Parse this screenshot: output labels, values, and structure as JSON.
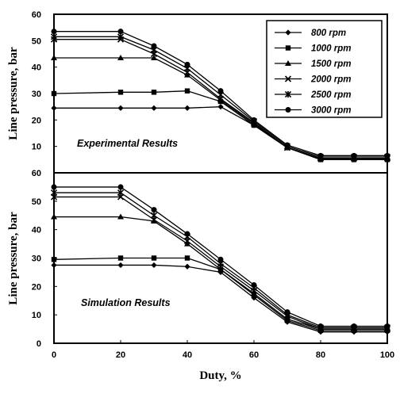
{
  "chart_data": [
    {
      "type": "line",
      "annotation": "Experimental Results",
      "xlabel": "Duty, %",
      "ylabel": "Line pressure, bar",
      "xlim": [
        0,
        100
      ],
      "ylim": [
        0,
        60
      ],
      "x_ticks": [
        "0",
        "20",
        "40",
        "60",
        "80",
        "100"
      ],
      "y_ticks": [
        "60",
        "50",
        "40",
        "30",
        "20",
        "10"
      ],
      "legend_position": "top-right",
      "x": [
        0,
        20,
        30,
        40,
        50,
        60,
        70,
        80,
        90,
        100
      ],
      "series": [
        {
          "name": "800 rpm",
          "marker": "diamond",
          "values": [
            24.5,
            24.5,
            24.5,
            24.5,
            25,
            18,
            9.5,
            5,
            5,
            5
          ]
        },
        {
          "name": "1000 rpm",
          "marker": "square",
          "values": [
            30,
            30.5,
            30.5,
            31,
            27,
            18,
            9.5,
            5,
            5,
            5
          ]
        },
        {
          "name": "1500 rpm",
          "marker": "triangle",
          "values": [
            43.5,
            43.5,
            43.5,
            37,
            27.5,
            18.5,
            9.5,
            5.5,
            5.5,
            5.5
          ]
        },
        {
          "name": "2000 rpm",
          "marker": "x",
          "values": [
            50.5,
            50.5,
            45,
            38,
            28,
            19,
            9.5,
            5.5,
            5.5,
            5.5
          ]
        },
        {
          "name": "2500 rpm",
          "marker": "star",
          "values": [
            51.5,
            51.5,
            46.5,
            39.5,
            29.5,
            19.5,
            10,
            6,
            6,
            6
          ]
        },
        {
          "name": "3000 rpm",
          "marker": "circle",
          "values": [
            53.5,
            53.5,
            48,
            41,
            31,
            20,
            10.5,
            6.5,
            6.5,
            6.5
          ]
        }
      ]
    },
    {
      "type": "line",
      "annotation": "Simulation Results",
      "xlabel": "Duty, %",
      "ylabel": "Line pressure, bar",
      "xlim": [
        0,
        100
      ],
      "ylim": [
        0,
        60
      ],
      "x_ticks": [
        "0",
        "20",
        "40",
        "60",
        "80",
        "100"
      ],
      "y_ticks": [
        "60",
        "50",
        "40",
        "30",
        "20",
        "10",
        "0"
      ],
      "x": [
        0,
        20,
        30,
        40,
        50,
        60,
        70,
        80,
        90,
        100
      ],
      "series": [
        {
          "name": "800 rpm",
          "marker": "diamond",
          "values": [
            27.5,
            27.5,
            27.5,
            27,
            25,
            16,
            7.5,
            4,
            4,
            4
          ]
        },
        {
          "name": "1000 rpm",
          "marker": "square",
          "values": [
            29.5,
            30,
            30,
            30,
            26,
            17,
            8,
            4.5,
            4.5,
            4.5
          ]
        },
        {
          "name": "1500 rpm",
          "marker": "triangle",
          "values": [
            44.5,
            44.5,
            43,
            35,
            26,
            17.5,
            8.5,
            5,
            5,
            5
          ]
        },
        {
          "name": "2000 rpm",
          "marker": "x",
          "values": [
            51.5,
            51.5,
            43.5,
            36,
            27,
            18.5,
            9.5,
            5,
            5,
            5
          ]
        },
        {
          "name": "2500 rpm",
          "marker": "star",
          "values": [
            53,
            53,
            45,
            37.5,
            28,
            19.5,
            10,
            5.5,
            5.5,
            5.5
          ]
        },
        {
          "name": "3000 rpm",
          "marker": "circle",
          "values": [
            55,
            55,
            47,
            38.5,
            29.5,
            20.5,
            11,
            6,
            6,
            6
          ]
        }
      ]
    }
  ]
}
